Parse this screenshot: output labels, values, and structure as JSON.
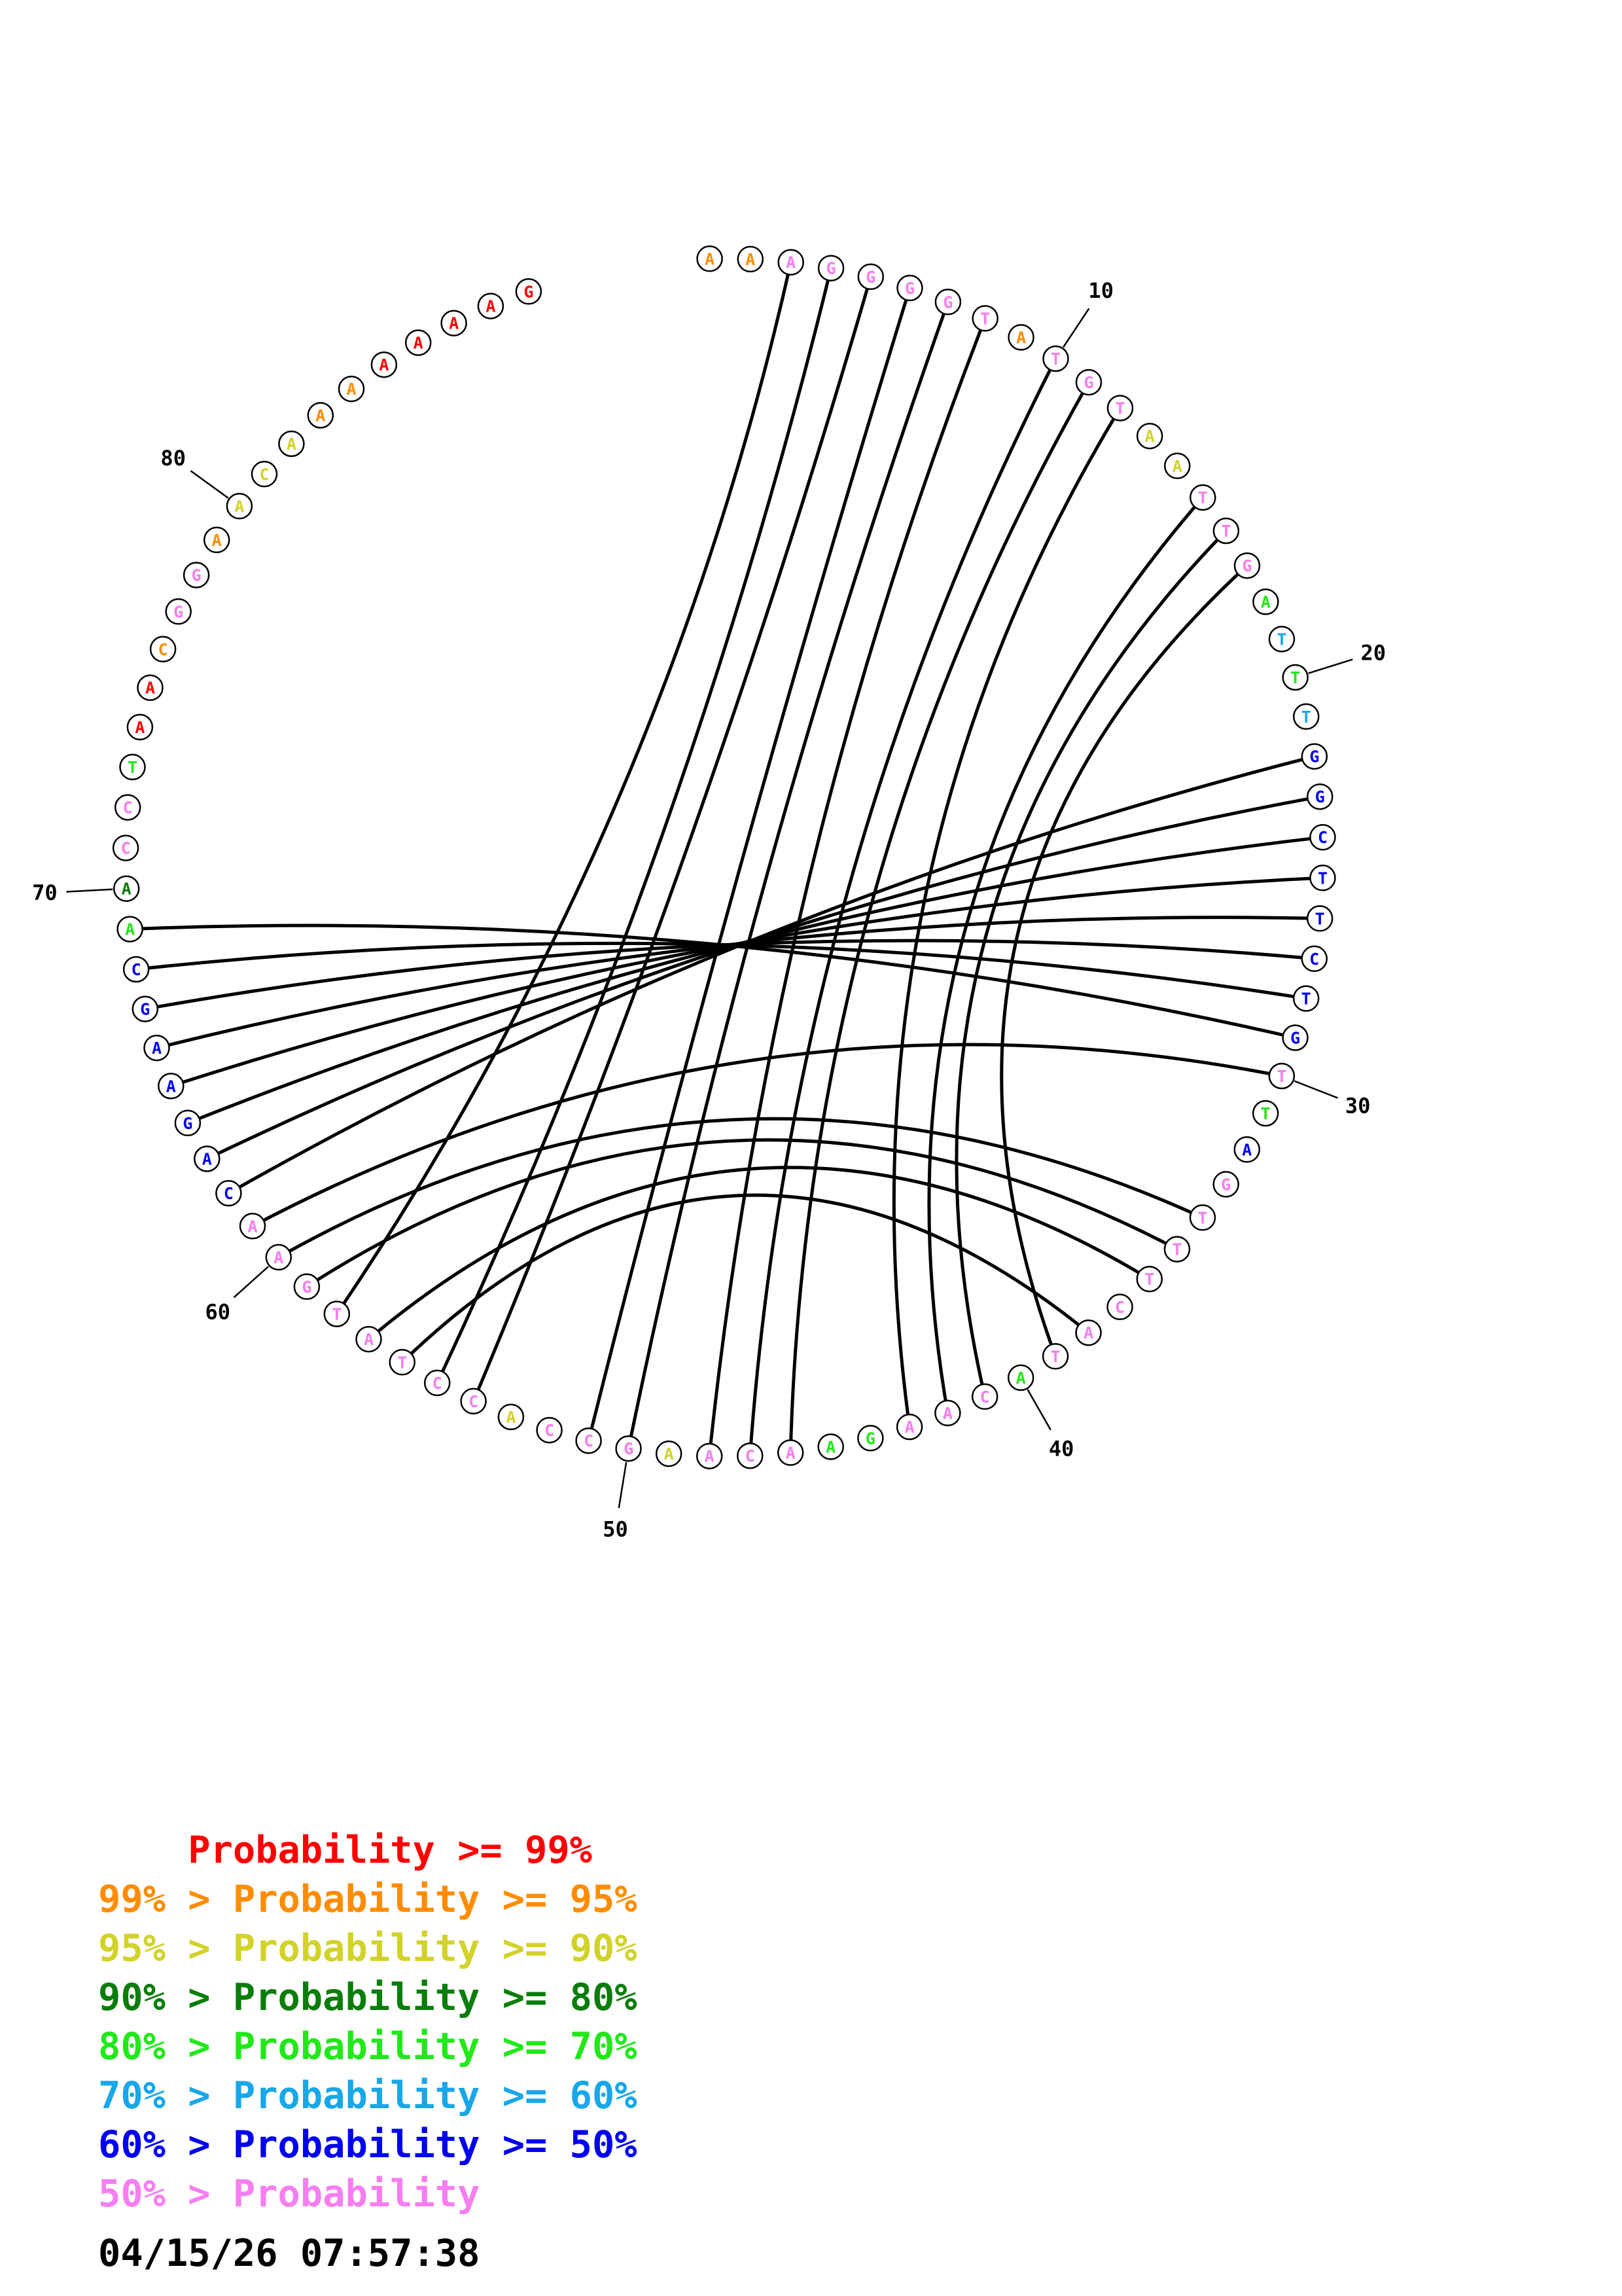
{
  "colors": {
    "p99": "#ff0000",
    "p95": "#ff8c00",
    "p90": "#d2d22a",
    "p80": "#0a7d0a",
    "p70": "#22e81a",
    "p60": "#18a7e8",
    "p50": "#0000f0",
    "pLow": "#f67ef0",
    "arc": "#000000"
  },
  "sequence": [
    {
      "n": 1,
      "base": "A",
      "prob": "p95"
    },
    {
      "n": 2,
      "base": "A",
      "prob": "p95"
    },
    {
      "n": 3,
      "base": "A",
      "prob": "pLow"
    },
    {
      "n": 4,
      "base": "G",
      "prob": "pLow"
    },
    {
      "n": 5,
      "base": "G",
      "prob": "pLow"
    },
    {
      "n": 6,
      "base": "G",
      "prob": "pLow"
    },
    {
      "n": 7,
      "base": "G",
      "prob": "pLow"
    },
    {
      "n": 8,
      "base": "T",
      "prob": "pLow"
    },
    {
      "n": 9,
      "base": "A",
      "prob": "p95"
    },
    {
      "n": 10,
      "base": "T",
      "prob": "pLow"
    },
    {
      "n": 11,
      "base": "G",
      "prob": "pLow"
    },
    {
      "n": 12,
      "base": "T",
      "prob": "pLow"
    },
    {
      "n": 13,
      "base": "A",
      "prob": "p90"
    },
    {
      "n": 14,
      "base": "A",
      "prob": "p90"
    },
    {
      "n": 15,
      "base": "T",
      "prob": "pLow"
    },
    {
      "n": 16,
      "base": "T",
      "prob": "pLow"
    },
    {
      "n": 17,
      "base": "G",
      "prob": "pLow"
    },
    {
      "n": 18,
      "base": "A",
      "prob": "p70"
    },
    {
      "n": 19,
      "base": "T",
      "prob": "p60"
    },
    {
      "n": 20,
      "base": "T",
      "prob": "p70"
    },
    {
      "n": 21,
      "base": "T",
      "prob": "p60"
    },
    {
      "n": 22,
      "base": "G",
      "prob": "p50"
    },
    {
      "n": 23,
      "base": "G",
      "prob": "p50"
    },
    {
      "n": 24,
      "base": "C",
      "prob": "p50"
    },
    {
      "n": 25,
      "base": "T",
      "prob": "p50"
    },
    {
      "n": 26,
      "base": "T",
      "prob": "p50"
    },
    {
      "n": 27,
      "base": "C",
      "prob": "p50"
    },
    {
      "n": 28,
      "base": "T",
      "prob": "p50"
    },
    {
      "n": 29,
      "base": "G",
      "prob": "p50"
    },
    {
      "n": 30,
      "base": "T",
      "prob": "pLow"
    },
    {
      "n": 31,
      "base": "T",
      "prob": "p70"
    },
    {
      "n": 32,
      "base": "A",
      "prob": "p50"
    },
    {
      "n": 33,
      "base": "G",
      "prob": "pLow"
    },
    {
      "n": 34,
      "base": "T",
      "prob": "pLow"
    },
    {
      "n": 35,
      "base": "T",
      "prob": "pLow"
    },
    {
      "n": 36,
      "base": "T",
      "prob": "pLow"
    },
    {
      "n": 37,
      "base": "C",
      "prob": "pLow"
    },
    {
      "n": 38,
      "base": "A",
      "prob": "pLow"
    },
    {
      "n": 39,
      "base": "T",
      "prob": "pLow"
    },
    {
      "n": 40,
      "base": "A",
      "prob": "p70"
    },
    {
      "n": 41,
      "base": "C",
      "prob": "pLow"
    },
    {
      "n": 42,
      "base": "A",
      "prob": "pLow"
    },
    {
      "n": 43,
      "base": "A",
      "prob": "pLow"
    },
    {
      "n": 44,
      "base": "G",
      "prob": "p70"
    },
    {
      "n": 45,
      "base": "A",
      "prob": "p70"
    },
    {
      "n": 46,
      "base": "A",
      "prob": "pLow"
    },
    {
      "n": 47,
      "base": "C",
      "prob": "pLow"
    },
    {
      "n": 48,
      "base": "A",
      "prob": "pLow"
    },
    {
      "n": 49,
      "base": "A",
      "prob": "p90"
    },
    {
      "n": 50,
      "base": "G",
      "prob": "pLow"
    },
    {
      "n": 51,
      "base": "C",
      "prob": "pLow"
    },
    {
      "n": 52,
      "base": "C",
      "prob": "pLow"
    },
    {
      "n": 53,
      "base": "A",
      "prob": "p90"
    },
    {
      "n": 54,
      "base": "C",
      "prob": "pLow"
    },
    {
      "n": 55,
      "base": "C",
      "prob": "pLow"
    },
    {
      "n": 56,
      "base": "T",
      "prob": "pLow"
    },
    {
      "n": 57,
      "base": "A",
      "prob": "pLow"
    },
    {
      "n": 58,
      "base": "T",
      "prob": "pLow"
    },
    {
      "n": 59,
      "base": "G",
      "prob": "pLow"
    },
    {
      "n": 60,
      "base": "A",
      "prob": "pLow"
    },
    {
      "n": 61,
      "base": "A",
      "prob": "pLow"
    },
    {
      "n": 62,
      "base": "C",
      "prob": "p50"
    },
    {
      "n": 63,
      "base": "A",
      "prob": "p50"
    },
    {
      "n": 64,
      "base": "G",
      "prob": "p50"
    },
    {
      "n": 65,
      "base": "A",
      "prob": "p50"
    },
    {
      "n": 66,
      "base": "A",
      "prob": "p50"
    },
    {
      "n": 67,
      "base": "G",
      "prob": "p50"
    },
    {
      "n": 68,
      "base": "C",
      "prob": "p50"
    },
    {
      "n": 69,
      "base": "A",
      "prob": "p70"
    },
    {
      "n": 70,
      "base": "A",
      "prob": "p80"
    },
    {
      "n": 71,
      "base": "C",
      "prob": "pLow"
    },
    {
      "n": 72,
      "base": "C",
      "prob": "pLow"
    },
    {
      "n": 73,
      "base": "T",
      "prob": "p70"
    },
    {
      "n": 74,
      "base": "A",
      "prob": "p99"
    },
    {
      "n": 75,
      "base": "A",
      "prob": "p99"
    },
    {
      "n": 76,
      "base": "C",
      "prob": "p95"
    },
    {
      "n": 77,
      "base": "G",
      "prob": "pLow"
    },
    {
      "n": 78,
      "base": "G",
      "prob": "pLow"
    },
    {
      "n": 79,
      "base": "A",
      "prob": "p95"
    },
    {
      "n": 80,
      "base": "A",
      "prob": "p90"
    },
    {
      "n": 81,
      "base": "C",
      "prob": "p90"
    },
    {
      "n": 82,
      "base": "A",
      "prob": "p90"
    },
    {
      "n": 83,
      "base": "A",
      "prob": "p95"
    },
    {
      "n": 84,
      "base": "A",
      "prob": "p95"
    },
    {
      "n": 85,
      "base": "A",
      "prob": "p99"
    },
    {
      "n": 86,
      "base": "A",
      "prob": "p99"
    },
    {
      "n": 87,
      "base": "A",
      "prob": "p99"
    },
    {
      "n": 88,
      "base": "A",
      "prob": "p99"
    },
    {
      "n": 89,
      "base": "G",
      "prob": "p99"
    }
  ],
  "pairs": [
    [
      3,
      58
    ],
    [
      4,
      55
    ],
    [
      5,
      54
    ],
    [
      6,
      51
    ],
    [
      7,
      50
    ],
    [
      8,
      48
    ],
    [
      10,
      47
    ],
    [
      11,
      46
    ],
    [
      12,
      43
    ],
    [
      15,
      42
    ],
    [
      16,
      41
    ],
    [
      17,
      39
    ],
    [
      22,
      62
    ],
    [
      23,
      63
    ],
    [
      24,
      64
    ],
    [
      25,
      65
    ],
    [
      26,
      66
    ],
    [
      27,
      67
    ],
    [
      28,
      68
    ],
    [
      29,
      69
    ],
    [
      30,
      61
    ],
    [
      34,
      60
    ],
    [
      35,
      59
    ],
    [
      36,
      57
    ],
    [
      38,
      56
    ]
  ],
  "tick_labels": [
    {
      "n": 10,
      "text": "10"
    },
    {
      "n": 20,
      "text": "20"
    },
    {
      "n": 30,
      "text": "30"
    },
    {
      "n": 40,
      "text": "40"
    },
    {
      "n": 50,
      "text": "50"
    },
    {
      "n": 60,
      "text": "60"
    },
    {
      "n": 70,
      "text": "70"
    },
    {
      "n": 80,
      "text": "80"
    }
  ],
  "legend": [
    {
      "prefix": "    ",
      "label": "Probability >= 99%",
      "color": "p99"
    },
    {
      "prefix": "99% > ",
      "label": "Probability >= 95%",
      "color": "p95"
    },
    {
      "prefix": "95% > ",
      "label": "Probability >= 90%",
      "color": "p90"
    },
    {
      "prefix": "90% > ",
      "label": "Probability >= 80%",
      "color": "p80"
    },
    {
      "prefix": "80% > ",
      "label": "Probability >= 70%",
      "color": "p70"
    },
    {
      "prefix": "70% > ",
      "label": "Probability >= 60%",
      "color": "p60"
    },
    {
      "prefix": "60% > ",
      "label": "Probability >= 50%",
      "color": "p50"
    },
    {
      "prefix": "50% > ",
      "label": "Probability",
      "color": "pLow"
    }
  ],
  "timestamp": "04/15/26 07:57:38"
}
